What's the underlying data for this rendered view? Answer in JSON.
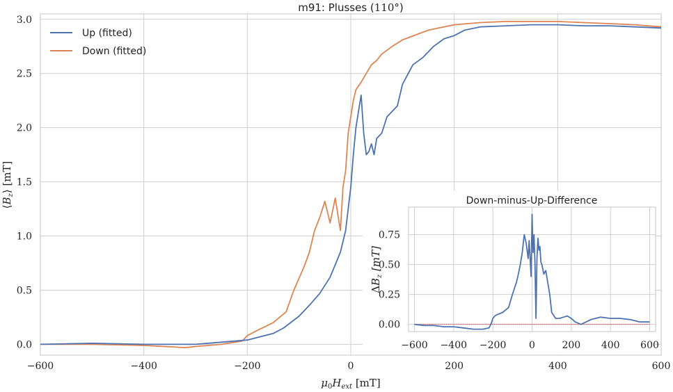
{
  "colors": {
    "up": "#4C72B0",
    "down": "#DD8452",
    "zero_line": "#C44E52"
  },
  "chart_data": [
    {
      "type": "line",
      "title": "m91: Plusses (110°)",
      "title_parts": {
        "prefix": "m91: Plusses (",
        "angle": "110",
        "deg": "°",
        "suffix": ")"
      },
      "xlabel": {
        "base": "μ",
        "sub0": "0",
        "H": "H",
        "sub1": "ext",
        "unit": " [mT]"
      },
      "ylabel": {
        "open": "⟨",
        "B": "B",
        "sub": "z",
        "close": "⟩",
        "unit": " [mT]"
      },
      "xlim": [
        -600,
        600
      ],
      "ylim": [
        -0.1,
        3.05
      ],
      "xticks": [
        -600,
        -400,
        -200,
        0,
        200,
        400,
        600
      ],
      "xtick_labels": [
        "−600",
        "−400",
        "−200",
        "0",
        "200",
        "400",
        "600"
      ],
      "yticks": [
        0.0,
        0.5,
        1.0,
        1.5,
        2.0,
        2.5,
        3.0
      ],
      "ytick_labels": [
        "0.0",
        "0.5",
        "1.0",
        "1.5",
        "2.0",
        "2.5",
        "3.0"
      ],
      "grid": true,
      "legend": "upper-left",
      "series": [
        {
          "name": "Up (fitted)",
          "x": [
            -600,
            -500,
            -400,
            -300,
            -250,
            -200,
            -150,
            -130,
            -100,
            -80,
            -60,
            -40,
            -20,
            -10,
            0,
            5,
            10,
            15,
            20,
            25,
            30,
            35,
            40,
            45,
            50,
            60,
            70,
            80,
            90,
            100,
            120,
            140,
            160,
            180,
            200,
            220,
            250,
            300,
            350,
            400,
            450,
            500,
            550,
            600
          ],
          "y": [
            0.0,
            0.01,
            0.0,
            0.0,
            0.02,
            0.04,
            0.1,
            0.15,
            0.26,
            0.36,
            0.47,
            0.62,
            0.85,
            1.05,
            1.45,
            1.75,
            2.0,
            2.15,
            2.3,
            1.95,
            1.75,
            1.78,
            1.85,
            1.75,
            1.9,
            1.95,
            2.1,
            2.15,
            2.2,
            2.4,
            2.58,
            2.65,
            2.75,
            2.82,
            2.85,
            2.9,
            2.93,
            2.94,
            2.95,
            2.95,
            2.94,
            2.94,
            2.93,
            2.92
          ]
        },
        {
          "name": "Down (fitted)",
          "x": [
            -600,
            -500,
            -400,
            -320,
            -300,
            -250,
            -210,
            -200,
            -180,
            -150,
            -125,
            -110,
            -90,
            -80,
            -70,
            -60,
            -50,
            -40,
            -30,
            -20,
            -15,
            -10,
            -5,
            0,
            5,
            10,
            20,
            30,
            40,
            50,
            60,
            80,
            100,
            150,
            200,
            250,
            300,
            350,
            400,
            450,
            500,
            550,
            600
          ],
          "y": [
            0.0,
            0.0,
            -0.01,
            -0.03,
            -0.02,
            0.0,
            0.03,
            0.08,
            0.13,
            0.2,
            0.3,
            0.5,
            0.72,
            0.85,
            1.05,
            1.17,
            1.32,
            1.12,
            1.35,
            1.05,
            1.45,
            1.6,
            1.95,
            2.1,
            2.25,
            2.35,
            2.42,
            2.5,
            2.58,
            2.62,
            2.68,
            2.75,
            2.81,
            2.9,
            2.95,
            2.97,
            2.98,
            2.98,
            2.98,
            2.97,
            2.96,
            2.95,
            2.93
          ]
        }
      ]
    },
    {
      "type": "line",
      "title": "Down-minus-Up-Difference",
      "ylabel": {
        "delta": "Δ",
        "B": "B",
        "sub": "z",
        "unit": " [mT]"
      },
      "xlim": [
        -630,
        630
      ],
      "ylim": [
        -0.06,
        0.98
      ],
      "xticks": [
        -600,
        -400,
        -200,
        0,
        200,
        400,
        600
      ],
      "xtick_labels": [
        "−600",
        "−400",
        "−200",
        "0",
        "200",
        "400",
        "600"
      ],
      "yticks": [
        0.0,
        0.25,
        0.5,
        0.75
      ],
      "ytick_labels": [
        "0.00",
        "0.25",
        "0.50",
        "0.75"
      ],
      "grid": true,
      "reference_line_y": 0.0,
      "series": [
        {
          "x": [
            -600,
            -550,
            -500,
            -450,
            -400,
            -350,
            -300,
            -250,
            -220,
            -210,
            -200,
            -190,
            -180,
            -150,
            -120,
            -100,
            -80,
            -70,
            -60,
            -50,
            -40,
            -30,
            -20,
            -15,
            -10,
            -5,
            0,
            5,
            10,
            15,
            20,
            25,
            30,
            35,
            40,
            45,
            50,
            60,
            70,
            80,
            90,
            100,
            120,
            140,
            160,
            180,
            200,
            220,
            250,
            300,
            350,
            400,
            450,
            500,
            550,
            600
          ],
          "y": [
            0.0,
            -0.01,
            -0.01,
            -0.02,
            -0.02,
            -0.03,
            -0.04,
            -0.04,
            -0.03,
            0.0,
            0.05,
            0.07,
            0.08,
            0.1,
            0.14,
            0.25,
            0.35,
            0.42,
            0.5,
            0.6,
            0.75,
            0.68,
            0.55,
            0.7,
            0.55,
            0.4,
            0.92,
            0.6,
            0.75,
            0.5,
            0.05,
            0.55,
            0.72,
            0.62,
            0.65,
            0.52,
            0.5,
            0.42,
            0.45,
            0.35,
            0.25,
            0.1,
            0.05,
            0.05,
            0.06,
            0.07,
            0.05,
            0.02,
            0.0,
            0.04,
            0.06,
            0.05,
            0.05,
            0.04,
            0.02,
            0.02
          ]
        }
      ]
    }
  ]
}
